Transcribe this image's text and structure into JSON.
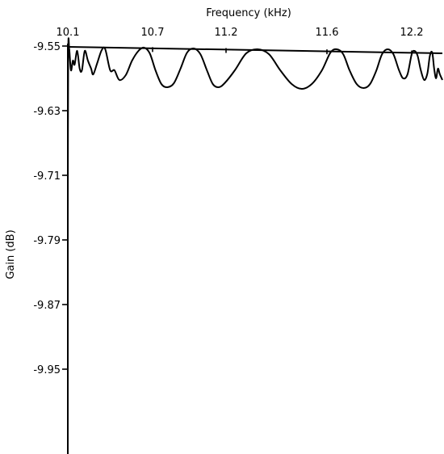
{
  "chart_data": {
    "type": "line",
    "title": "",
    "xlabel": "Frequency (kHz)",
    "ylabel": "Gain (dB)",
    "x_axis_position": "top",
    "xlim": [
      10.1,
      12.49
    ],
    "ylim": [
      -10.0,
      -9.55
    ],
    "x_ticks": [
      {
        "value": 10.1,
        "label": "10.1"
      },
      {
        "value": 10.7,
        "label": "10.7"
      },
      {
        "value": 11.2,
        "label": "11.2"
      },
      {
        "value": 11.6,
        "label": "11.6"
      },
      {
        "value": 12.2,
        "label": "12.2"
      }
    ],
    "y_ticks": [
      {
        "value": -9.55,
        "label": "-9.55"
      },
      {
        "value": -9.63,
        "label": "-9.63"
      },
      {
        "value": -9.71,
        "label": "-9.71"
      },
      {
        "value": -9.79,
        "label": "-9.79"
      },
      {
        "value": -9.87,
        "label": "-9.87"
      },
      {
        "value": -9.95,
        "label": "-9.95"
      }
    ],
    "grid": false,
    "series": [
      {
        "x": [
          10.1,
          10.103,
          10.11,
          10.122,
          10.136,
          10.148,
          10.166,
          10.184,
          10.2,
          10.22,
          10.242,
          10.265,
          10.28,
          10.31,
          10.34,
          10.365,
          10.4,
          10.43,
          10.465,
          10.51,
          10.555,
          10.6,
          10.64,
          10.68,
          10.72,
          10.76,
          10.8,
          10.845,
          10.89,
          10.935,
          10.98,
          11.025,
          11.07,
          11.11,
          11.15,
          11.19,
          11.235,
          11.28,
          11.325,
          11.37,
          11.415,
          11.46,
          11.5,
          11.54,
          11.58,
          11.625,
          11.67,
          11.715,
          11.76,
          11.81,
          11.86,
          11.905,
          11.95,
          11.99,
          12.03,
          12.07,
          12.11,
          12.14,
          12.17,
          12.2,
          12.226,
          12.256,
          12.286,
          12.318,
          12.348,
          12.372,
          12.394,
          12.412,
          12.43,
          12.448,
          12.466,
          12.49
        ],
        "y": [
          -9.76,
          -9.558,
          -9.553,
          -9.58,
          -9.568,
          -9.573,
          -9.556,
          -9.578,
          -9.58,
          -9.556,
          -9.568,
          -9.578,
          -9.585,
          -9.57,
          -9.555,
          -9.554,
          -9.58,
          -9.58,
          -9.592,
          -9.586,
          -9.568,
          -9.556,
          -9.552,
          -9.559,
          -9.58,
          -9.597,
          -9.601,
          -9.596,
          -9.578,
          -9.558,
          -9.553,
          -9.56,
          -9.58,
          -9.597,
          -9.601,
          -9.596,
          -9.58,
          -9.559,
          -9.554,
          -9.56,
          -9.58,
          -9.597,
          -9.603,
          -9.597,
          -9.58,
          -9.558,
          -9.554,
          -9.56,
          -9.58,
          -9.597,
          -9.602,
          -9.597,
          -9.58,
          -9.56,
          -9.554,
          -9.56,
          -9.58,
          -9.59,
          -9.585,
          -9.56,
          -9.556,
          -9.562,
          -9.58,
          -9.592,
          -9.584,
          -9.562,
          -9.558,
          -9.578,
          -9.59,
          -9.578,
          -9.585,
          -9.592
        ]
      },
      {
        "x": [
          10.1,
          12.49
        ],
        "y": [
          -9.551,
          -9.559
        ]
      }
    ]
  }
}
